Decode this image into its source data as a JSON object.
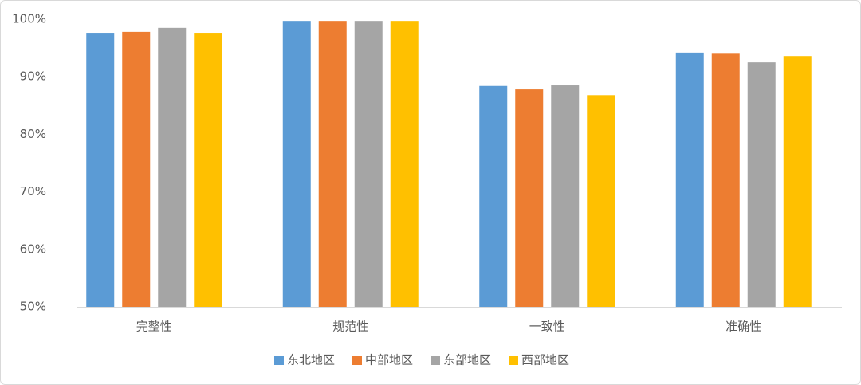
{
  "chart_data": {
    "type": "bar",
    "categories": [
      "完整性",
      "规范性",
      "一致性",
      "准确性"
    ],
    "series": [
      {
        "name": "东北地区",
        "color": "#5b9bd5",
        "values": [
          97.5,
          99.7,
          88.4,
          94.2
        ]
      },
      {
        "name": "中部地区",
        "color": "#ed7d31",
        "values": [
          97.8,
          99.7,
          87.8,
          94.0
        ]
      },
      {
        "name": "东部地区",
        "color": "#a5a5a5",
        "values": [
          98.5,
          99.7,
          88.5,
          92.5
        ]
      },
      {
        "name": "西部地区",
        "color": "#ffc000",
        "values": [
          97.5,
          99.7,
          86.8,
          93.6
        ]
      }
    ],
    "ylim": [
      50,
      100
    ],
    "yticks": [
      {
        "value": 50,
        "label": "50%"
      },
      {
        "value": 60,
        "label": "60%"
      },
      {
        "value": 70,
        "label": "70%"
      },
      {
        "value": 80,
        "label": "80%"
      },
      {
        "value": 90,
        "label": "90%"
      },
      {
        "value": 100,
        "label": "100%"
      }
    ],
    "grid": false,
    "legend": "bottom"
  }
}
